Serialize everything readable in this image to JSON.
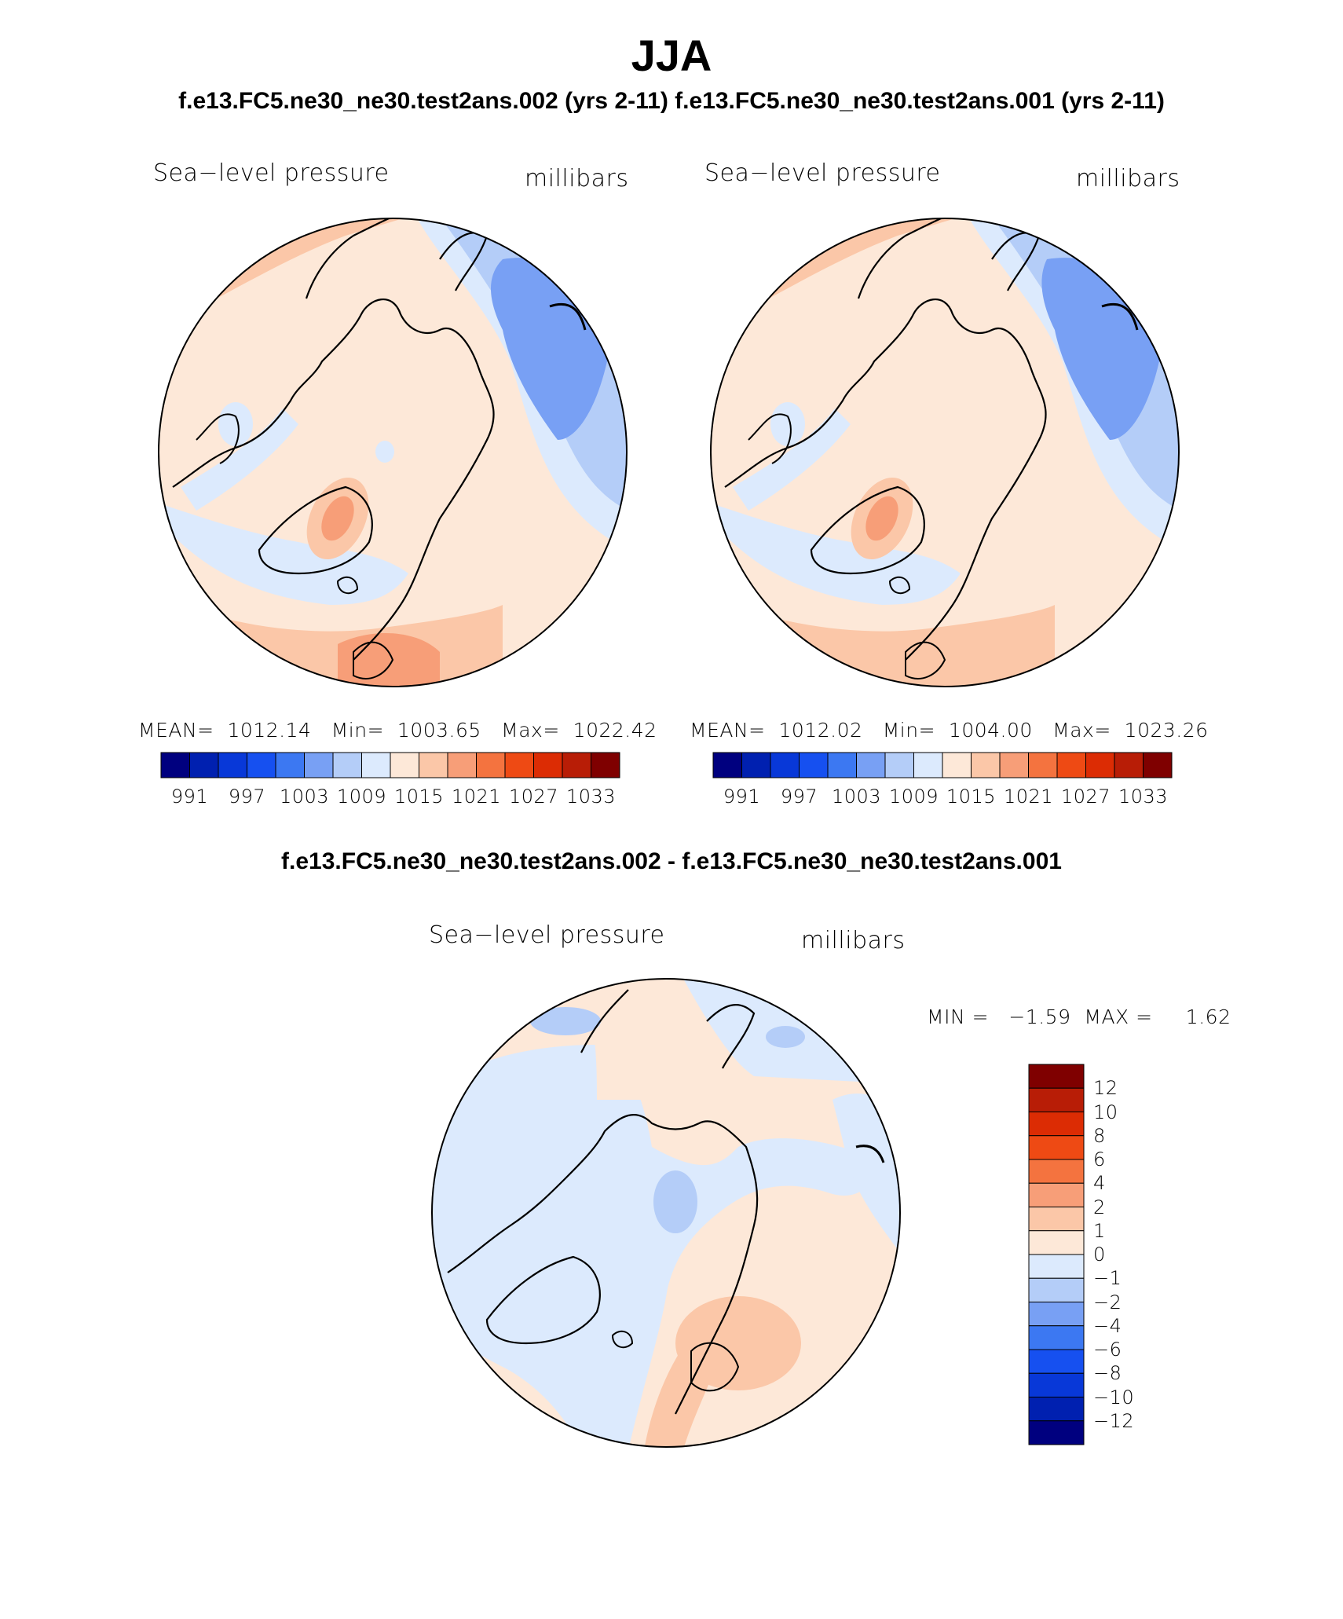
{
  "title": "JJA",
  "case_title": "f.e13.FC5.ne30_ne30.test2ans.002 (yrs 2-11) f.e13.FC5.ne30_ne30.test2ans.001 (yrs 2-11)",
  "diff_title": "f.e13.FC5.ne30_ne30.test2ans.002 - f.e13.FC5.ne30_ne30.test2ans.001",
  "panels": [
    {
      "variable": "Sea−level pressure",
      "units": "millibars",
      "stats": "MEAN=  1012.14   Min=  1003.65   Max=  1022.42"
    },
    {
      "variable": "Sea−level pressure",
      "units": "millibars",
      "stats": "MEAN=  1012.02   Min=  1004.00   Max=  1023.26"
    }
  ],
  "diff_panel": {
    "variable": "Sea−level pressure",
    "units": "millibars",
    "minmax": "MIN =   −1.59  MAX =     1.62"
  },
  "colorbar": {
    "labels": [
      "991",
      "997",
      "1003",
      "1009",
      "1015",
      "1021",
      "1027",
      "1033"
    ],
    "colors": [
      "#00007f",
      "#0020b0",
      "#0838d8",
      "#1650f0",
      "#3c78f2",
      "#78a0f4",
      "#b4cdf8",
      "#dceafd",
      "#fde8d8",
      "#fbc7a8",
      "#f79e78",
      "#f4733f",
      "#ee4a14",
      "#dc2c04",
      "#b81d06",
      "#7f0000"
    ]
  },
  "diff_colorbar": {
    "labels": [
      "12",
      "10",
      "8",
      "6",
      "4",
      "2",
      "1",
      "0",
      "−1",
      "−2",
      "−4",
      "−6",
      "−8",
      "−10",
      "−12"
    ],
    "colors": [
      "#7f0000",
      "#b81d06",
      "#dc2c04",
      "#ee4a14",
      "#f4733f",
      "#f79e78",
      "#fbc7a8",
      "#fde8d8",
      "#dceafd",
      "#b4cdf8",
      "#78a0f4",
      "#3c78f2",
      "#1650f0",
      "#0838d8",
      "#0020b0",
      "#00007f"
    ]
  },
  "chart_data": [
    {
      "type": "heatmap",
      "title": "Sea−level pressure",
      "units": "millibars",
      "projection": "polar stereographic (North Pole)",
      "mean": 1012.14,
      "min": 1003.65,
      "max": 1022.42,
      "levels": [
        991,
        994,
        997,
        1000,
        1003,
        1006,
        1009,
        1012,
        1015,
        1018,
        1021,
        1024,
        1027,
        1030,
        1033
      ]
    },
    {
      "type": "heatmap",
      "title": "Sea−level pressure",
      "units": "millibars",
      "projection": "polar stereographic (North Pole)",
      "mean": 1012.02,
      "min": 1004.0,
      "max": 1023.26,
      "levels": [
        991,
        994,
        997,
        1000,
        1003,
        1006,
        1009,
        1012,
        1015,
        1018,
        1021,
        1024,
        1027,
        1030,
        1033
      ]
    },
    {
      "type": "heatmap",
      "title": "Sea−level pressure",
      "units": "millibars",
      "projection": "polar stereographic (North Pole)",
      "min": -1.59,
      "max": 1.62,
      "levels": [
        -12,
        -10,
        -8,
        -6,
        -4,
        -2,
        -1,
        0,
        1,
        2,
        4,
        6,
        8,
        10,
        12
      ]
    }
  ]
}
